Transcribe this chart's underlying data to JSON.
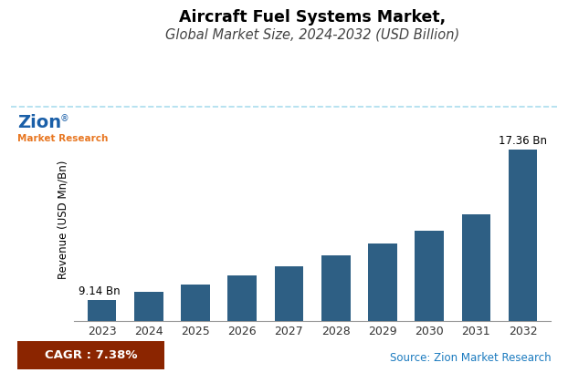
{
  "title_line1": "Aircraft Fuel Systems Market,",
  "title_line2": "Global Market Size, 2024-2032 (USD Billion)",
  "years": [
    2023,
    2024,
    2025,
    2026,
    2027,
    2028,
    2029,
    2030,
    2031,
    2032
  ],
  "values": [
    9.14,
    9.56,
    9.99,
    10.5,
    11.0,
    11.55,
    12.2,
    12.9,
    13.8,
    17.36
  ],
  "bar_color": "#2e5f84",
  "ylabel": "Revenue (USD Mn/Bn)",
  "ylim": [
    8.0,
    19.0
  ],
  "first_bar_label": "9.14 Bn",
  "last_bar_label": "17.36 Bn",
  "cagr_text": "CAGR : 7.38%",
  "cagr_bg_color": "#8B2500",
  "cagr_text_color": "#ffffff",
  "source_text": "Source: Zion Market Research",
  "source_text_color": "#1a7abf",
  "title_color": "#000000",
  "subtitle_color": "#444444",
  "background_color": "#ffffff",
  "dashed_line_color": "#aaddee",
  "title_fontsize": 12.5,
  "subtitle_fontsize": 10.5,
  "annotation_fontsize": 8.5,
  "axis_label_fontsize": 8.5,
  "tick_fontsize": 9
}
